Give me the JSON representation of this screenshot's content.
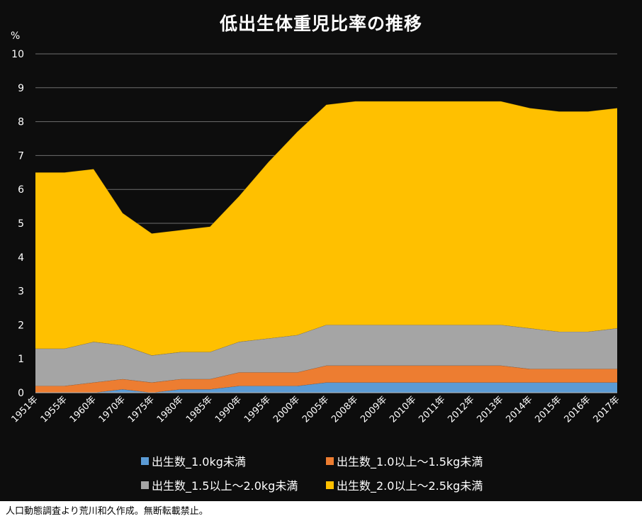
{
  "chart_data": {
    "type": "area",
    "stacked": true,
    "title": "低出生体重児比率の推移",
    "ylabel": "%",
    "xlabel": "",
    "ylim": [
      0,
      10
    ],
    "yticks": [
      "0",
      "1",
      "2",
      "3",
      "4",
      "5",
      "6",
      "7",
      "8",
      "9",
      "10"
    ],
    "grid": true,
    "categories": [
      "1951年",
      "1955年",
      "1960年",
      "1970年",
      "1975年",
      "1980年",
      "1985年",
      "1990年",
      "1995年",
      "2000年",
      "2005年",
      "2008年",
      "2009年",
      "2010年",
      "2011年",
      "2012年",
      "2013年",
      "2014年",
      "2015年",
      "2016年",
      "2017年"
    ],
    "series": [
      {
        "name": "出生数_1.0kg未満",
        "color": "#5b9bd5",
        "values": [
          0.0,
          0.0,
          0.0,
          0.1,
          0.0,
          0.1,
          0.1,
          0.2,
          0.2,
          0.2,
          0.3,
          0.3,
          0.3,
          0.3,
          0.3,
          0.3,
          0.3,
          0.3,
          0.3,
          0.3,
          0.3
        ]
      },
      {
        "name": "出生数_1.0以上～1.5kg未満",
        "color": "#ed7d31",
        "values": [
          0.2,
          0.2,
          0.3,
          0.3,
          0.3,
          0.3,
          0.3,
          0.4,
          0.4,
          0.4,
          0.5,
          0.5,
          0.5,
          0.5,
          0.5,
          0.5,
          0.5,
          0.4,
          0.4,
          0.4,
          0.4
        ]
      },
      {
        "name": "出生数_1.5以上～2.0kg未満",
        "color": "#a5a5a5",
        "values": [
          1.1,
          1.1,
          1.2,
          1.0,
          0.8,
          0.8,
          0.8,
          0.9,
          1.0,
          1.1,
          1.2,
          1.2,
          1.2,
          1.2,
          1.2,
          1.2,
          1.2,
          1.2,
          1.1,
          1.1,
          1.2
        ]
      },
      {
        "name": "出生数_2.0以上～2.5kg未満",
        "color": "#ffc000",
        "values": [
          5.2,
          5.2,
          5.1,
          3.9,
          3.6,
          3.6,
          3.7,
          4.3,
          5.2,
          6.0,
          6.5,
          6.6,
          6.6,
          6.6,
          6.6,
          6.6,
          6.6,
          6.5,
          6.5,
          6.5,
          6.5
        ]
      }
    ],
    "legend_position": "bottom"
  },
  "footer_note": "人口動態調査より荒川和久作成。無断転載禁止。"
}
